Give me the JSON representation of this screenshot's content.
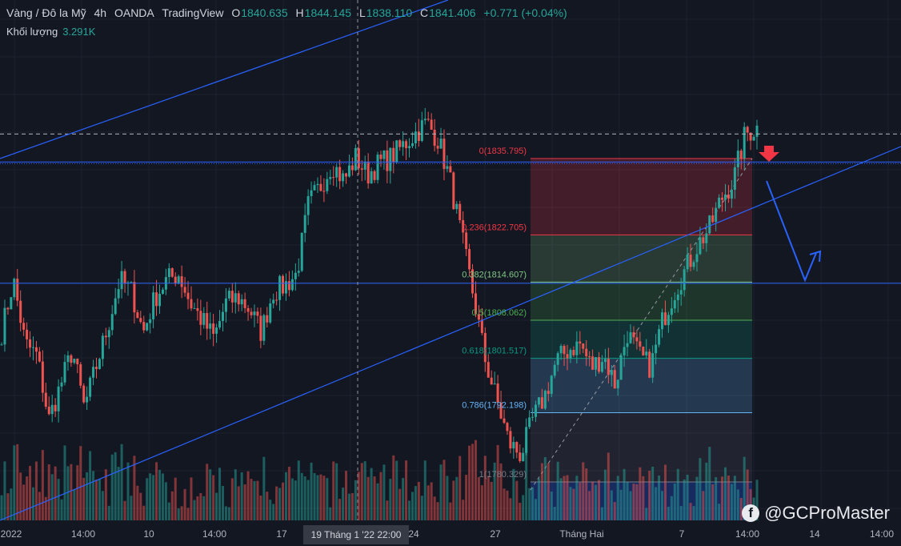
{
  "header": {
    "symbol": "Vàng / Đô la Mỹ",
    "interval": "4h",
    "broker": "OANDA",
    "platform": "TradingView",
    "open_label": "O",
    "open": "1840.635",
    "high_label": "H",
    "high": "1844.145",
    "low_label": "L",
    "low": "1838.110",
    "close_label": "C",
    "close": "1841.406",
    "change": "+0.771 (+0.04%)"
  },
  "volume": {
    "label": "Khối lượng",
    "value": "3.291K"
  },
  "watermark": {
    "text": "@GCProMaster",
    "icon": "facebook-icon"
  },
  "colors": {
    "up": "#26a69a",
    "down": "#ef5350",
    "trendline": "#2962ff",
    "background": "#131722"
  },
  "chart_data": {
    "type": "candlestick",
    "title": "",
    "x_ticks": [
      "2022",
      "14:00",
      "10",
      "14:00",
      "17",
      "19 Tháng 1 '22",
      "22:00",
      "24",
      "27",
      "Tháng Hai",
      "7",
      "14:00",
      "14",
      "14:00"
    ],
    "crosshair_x_label": "19 Tháng 1 '22  22:00",
    "close_path": [
      1806,
      1815,
      1804,
      1802,
      1791,
      1797,
      1803,
      1793,
      1800,
      1807,
      1815,
      1813,
      1806,
      1812,
      1815,
      1816,
      1811,
      1808,
      1805,
      1811,
      1812,
      1810,
      1806,
      1813,
      1814,
      1816,
      1828,
      1831,
      1835,
      1832,
      1836,
      1833,
      1835,
      1836,
      1838,
      1840,
      1842,
      1839,
      1832,
      1822,
      1812,
      1801,
      1794,
      1787,
      1785,
      1791,
      1795,
      1801,
      1803,
      1804,
      1800,
      1802,
      1797,
      1806,
      1802,
      1800,
      1808,
      1813,
      1817,
      1821,
      1824,
      1829,
      1832,
      1840,
      1841
    ],
    "candle_count": 240,
    "volume_series": "relative volume bars",
    "fibonacci": [
      {
        "ratio": "0",
        "price": "1835.795",
        "label": "0(1835.795)"
      },
      {
        "ratio": "0.236",
        "price": "1822.705",
        "label": "0.236(1822.705)"
      },
      {
        "ratio": "0.382",
        "price": "1814.607",
        "label": "0.382(1814.607)"
      },
      {
        "ratio": "0.5",
        "price": "1808.062",
        "label": "0.5(1808.062)"
      },
      {
        "ratio": "0.618",
        "price": "1801.517",
        "label": "0.618(1801.517)"
      },
      {
        "ratio": "0.786",
        "price": "1792.198",
        "label": "0.786(1792.198)"
      },
      {
        "ratio": "1",
        "price": "1780.329",
        "label": "1(1780.329)"
      }
    ],
    "fib_colors": [
      "#f23645",
      "#f23645",
      "#81c784",
      "#4caf50",
      "#089981",
      "#64b5f6",
      "#787b86"
    ],
    "horizontal_levels": [
      1835.2,
      1814.4
    ],
    "dashed_level": 1840.0,
    "price_range": [
      1775,
      1850
    ],
    "annotations": [
      "down-arrow-icon",
      "projection-path"
    ]
  }
}
